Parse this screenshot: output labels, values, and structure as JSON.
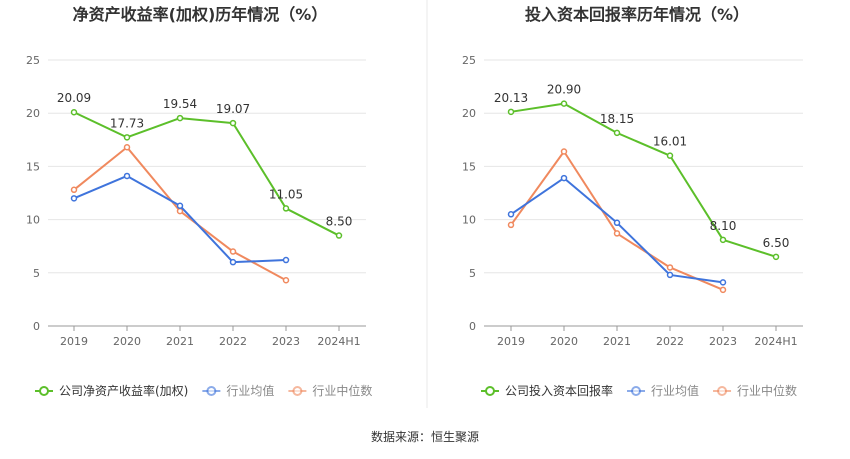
{
  "colors": {
    "company": "#5cbf2a",
    "industry_avg": "#3f74dc",
    "industry_median": "#f0895e",
    "grid": "#e6e6e6",
    "axis": "#999999",
    "text": "#333333",
    "divider": "#e8e8e8"
  },
  "source_text": "数据来源：恒生聚源",
  "chart_data": [
    {
      "type": "line",
      "title": "净资产收益率(加权)历年情况（%）",
      "categories": [
        "2019",
        "2020",
        "2021",
        "2022",
        "2023",
        "2024H1"
      ],
      "ylim": [
        0,
        25
      ],
      "yticks": [
        0,
        5,
        10,
        15,
        20,
        25
      ],
      "grid": true,
      "legend_position": "bottom-left",
      "series": [
        {
          "name": "公司净资产收益率(加权)",
          "color_key": "company",
          "values": [
            20.09,
            17.73,
            19.54,
            19.07,
            11.05,
            8.5
          ],
          "labels": [
            "20.09",
            "17.73",
            "19.54",
            "19.07",
            "11.05",
            "8.50"
          ]
        },
        {
          "name": "行业均值",
          "color_key": "industry_avg",
          "values": [
            12.0,
            14.1,
            11.3,
            6.0,
            6.2,
            null
          ]
        },
        {
          "name": "行业中位数",
          "color_key": "industry_median",
          "values": [
            12.8,
            16.8,
            10.8,
            7.0,
            4.3,
            null
          ]
        }
      ]
    },
    {
      "type": "line",
      "title": "投入资本回报率历年情况（%）",
      "categories": [
        "2019",
        "2020",
        "2021",
        "2022",
        "2023",
        "2024H1"
      ],
      "ylim": [
        0,
        25
      ],
      "yticks": [
        0,
        5,
        10,
        15,
        20,
        25
      ],
      "grid": true,
      "legend_position": "bottom-left",
      "series": [
        {
          "name": "公司投入资本回报率",
          "color_key": "company",
          "values": [
            20.13,
            20.9,
            18.15,
            16.01,
            8.1,
            6.5
          ],
          "labels": [
            "20.13",
            "20.90",
            "18.15",
            "16.01",
            "8.10",
            "6.50"
          ]
        },
        {
          "name": "行业均值",
          "color_key": "industry_avg",
          "values": [
            10.5,
            13.9,
            9.7,
            4.8,
            4.1,
            null
          ]
        },
        {
          "name": "行业中位数",
          "color_key": "industry_median",
          "values": [
            9.5,
            16.4,
            8.7,
            5.5,
            3.4,
            null
          ]
        }
      ]
    }
  ]
}
